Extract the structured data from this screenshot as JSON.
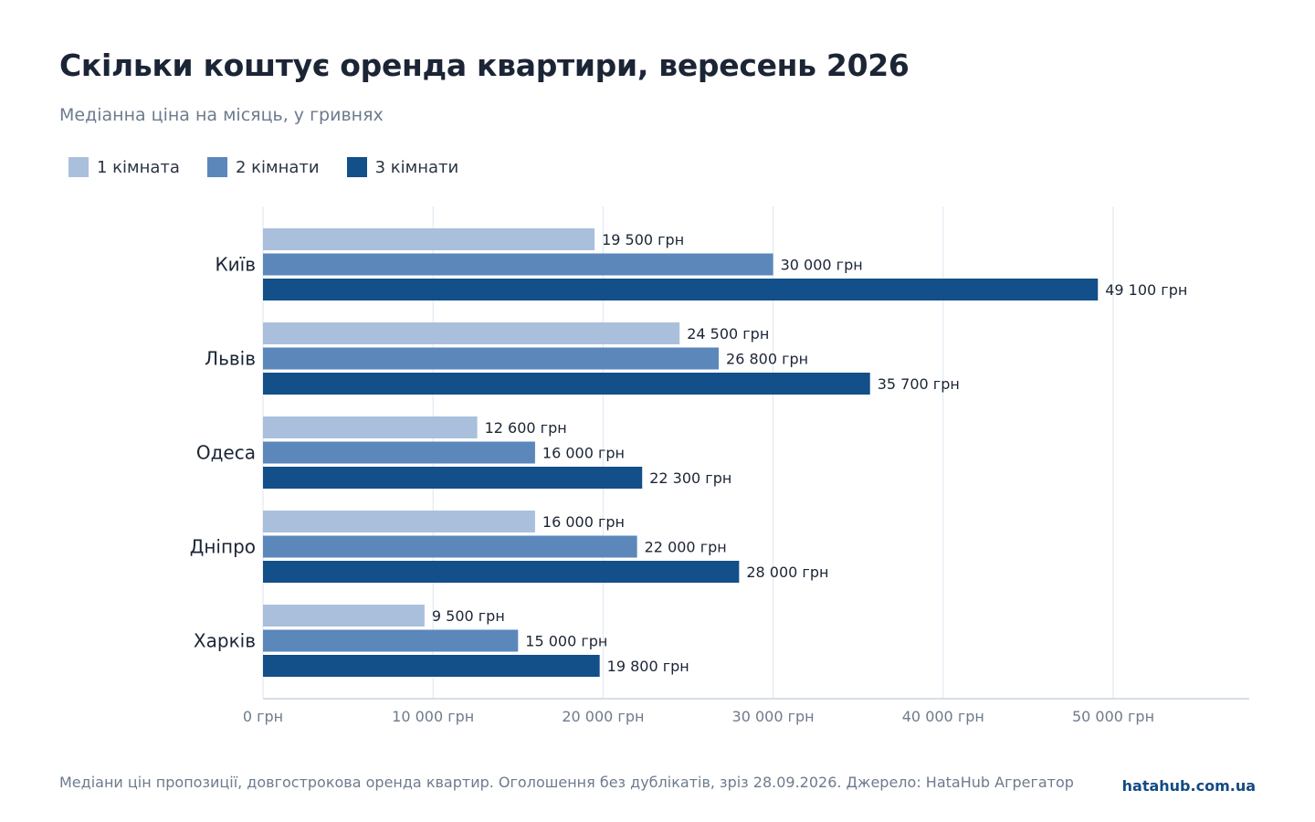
{
  "header": {
    "title": "Скільки коштує оренда квартири, вересень 2026",
    "subtitle": "Медіанна ціна на місяць, у гривнях"
  },
  "legend": [
    {
      "label": "1 кімната",
      "color": "#aabfdc"
    },
    {
      "label": "2 кімнати",
      "color": "#5b87bb"
    },
    {
      "label": "3 кімнати",
      "color": "#134f89"
    }
  ],
  "chart_data": {
    "type": "bar",
    "orientation": "horizontal",
    "categories": [
      "Київ",
      "Львів",
      "Одеса",
      "Дніпро",
      "Харків"
    ],
    "series": [
      {
        "name": "1 кімната",
        "color": "#aabfdc",
        "values": [
          19500,
          24500,
          12600,
          16000,
          9500
        ]
      },
      {
        "name": "2 кімнати",
        "color": "#5b87bb",
        "values": [
          30000,
          26800,
          16000,
          22000,
          15000
        ]
      },
      {
        "name": "3 кімнати",
        "color": "#134f89",
        "values": [
          49100,
          35700,
          22300,
          28000,
          19800
        ]
      }
    ],
    "value_labels": [
      [
        "19 500 грн",
        "30 000 грн",
        "49 100 грн"
      ],
      [
        "24 500 грн",
        "26 800 грн",
        "35 700 грн"
      ],
      [
        "12 600 грн",
        "16 000 грн",
        "22 300 грн"
      ],
      [
        "16 000 грн",
        "22 000 грн",
        "28 000 грн"
      ],
      [
        "9 500 грн",
        "15 000 грн",
        "19 800 грн"
      ]
    ],
    "x_ticks": [
      0,
      10000,
      20000,
      30000,
      40000,
      50000
    ],
    "x_tick_labels": [
      "0 грн",
      "10 000 грн",
      "20 000 грн",
      "30 000 грн",
      "40 000 грн",
      "50 000 грн"
    ],
    "xlim": [
      0,
      58000
    ],
    "grid": true,
    "legend_position": "top-left"
  },
  "footer": {
    "note": "Медіани цін пропозиції, довгострокова оренда квартир. Оголошення без дублікатів, зріз 28.09.2026. Джерело: HataHub Агрегатор",
    "brand": "hatahub.com.ua"
  }
}
